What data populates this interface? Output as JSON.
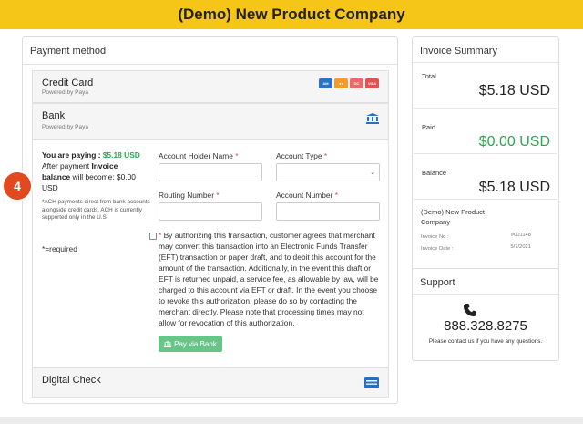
{
  "header": {
    "title": "(Demo) New Product Company"
  },
  "payment": {
    "section_title": "Payment method",
    "credit_card": {
      "title": "Credit Card",
      "subtitle": "Powered by Paya",
      "card_icons": [
        "amex-icon",
        "mastercard-icon",
        "discover-icon",
        "visa-icon"
      ]
    },
    "bank": {
      "title": "Bank",
      "subtitle": "Powered by Paya",
      "icon": "bank-icon",
      "badge": "4",
      "paying_label": "You are paying :",
      "paying_amount": "$5.18 USD",
      "after_text": "After payment",
      "invoice_word": "Invoice",
      "balance_word": "balance",
      "will_become": "will become: $0.00 USD",
      "ach_note": "*ACH payments direct from bank accounts alongside credit cards. ACH is currently supported only in the U.S.",
      "required_note": "*=required",
      "fields": {
        "account_holder_label": "Account Holder Name",
        "account_holder_value": "",
        "account_type_label": "Account Type",
        "account_type_value": "",
        "routing_label": "Routing Number",
        "routing_value": "",
        "account_number_label": "Account Number",
        "account_number_value": "",
        "required_mark": "*"
      },
      "agreement_text": "By authorizing this transaction, customer agrees that merchant may convert this transaction into an Electronic Funds Transfer (EFT) transaction or paper draft, and to debit this account for the amount of the transaction. Additionally, in the event this draft or EFT is returned unpaid, a service fee, as allowable by law, will be charged to this account via EFT or draft. In the event you choose to revoke this authorization, please do so by contacting the merchant directly. Please note that processing times may not allow for revocation of this authorization.",
      "pay_button": "Pay via Bank"
    },
    "digital_check": {
      "title": "Digital Check",
      "icon": "check-card-icon"
    }
  },
  "invoice_summary": {
    "title": "Invoice Summary",
    "total_label": "Total",
    "total_value": "$5.18 USD",
    "paid_label": "Paid",
    "paid_value": "$0.00 USD",
    "balance_label": "Balance",
    "balance_value": "$5.18 USD",
    "company": "(Demo) New Product Company",
    "invoice_no_label": "Invoice No :",
    "invoice_no_value": "#001148",
    "invoice_date_label": "Invoice Date :",
    "invoice_date_value": "5/7/2021"
  },
  "support": {
    "title": "Support",
    "phone": "888.328.8275",
    "help_text": "Please contact us if you have any questions."
  },
  "colors": {
    "brand_yellow": "#f5c518",
    "success_green": "#2ea44f",
    "button_green": "#69c48a",
    "badge_orange": "#e04a20"
  }
}
